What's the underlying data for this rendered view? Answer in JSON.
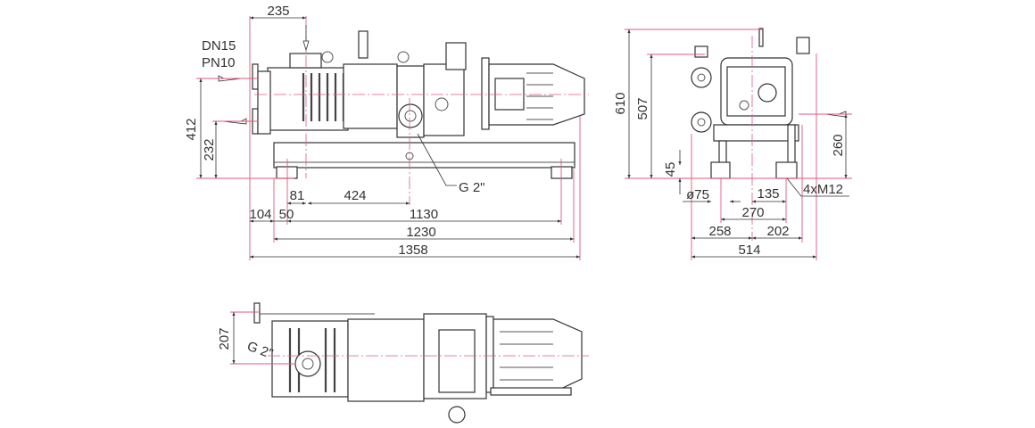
{
  "front_view": {
    "connection_label_1": "DN15",
    "connection_label_2": "PN10",
    "thread_label": "G 2\"",
    "dimensions": {
      "d235": "235",
      "d412": "412",
      "d232": "232",
      "d81": "81",
      "d424": "424",
      "d104": "104",
      "d50": "50",
      "d1130": "1130",
      "d1230": "1230",
      "d1358": "1358"
    }
  },
  "side_view": {
    "foot_bolt_label": "4xM12",
    "dimensions": {
      "d610": "610",
      "d507": "507",
      "d45": "45",
      "d260": "260",
      "d75": "ø75",
      "d135": "135",
      "d270": "270",
      "d258": "258",
      "d202": "202",
      "d514": "514"
    }
  },
  "top_view": {
    "thread_label": "G 2\"",
    "dimensions": {
      "d207": "207"
    }
  },
  "colors": {
    "dimension_line": "#e25a7c",
    "outline": "#333333"
  }
}
